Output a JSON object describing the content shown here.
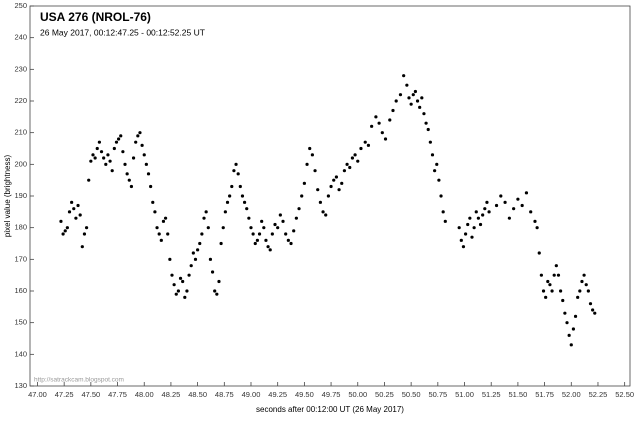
{
  "chart_data": {
    "type": "scatter",
    "title": "USA 276  (NROL-76)",
    "subtitle": "26 May 2017, 00:12:47.25 - 00:12:52.25 UT",
    "x_label": "seconds after 00:12:00 UT (26 May 2017)",
    "y_label": "pixel value (brightness)",
    "annotation": "http://satrackcam.blogspot.com",
    "color": "#000000",
    "xlim": [
      46.93,
      52.55
    ],
    "ylim": [
      130,
      250
    ],
    "xticks": [
      {
        "value": 47,
        "label": "47.00"
      },
      {
        "value": 47.25,
        "label": "47.25"
      },
      {
        "value": 47.5,
        "label": "47.50"
      },
      {
        "value": 47.75,
        "label": "47.75"
      },
      {
        "value": 48,
        "label": "48.00"
      },
      {
        "value": 48.25,
        "label": "48.25"
      },
      {
        "value": 48.5,
        "label": "48.50"
      },
      {
        "value": 48.75,
        "label": "48.75"
      },
      {
        "value": 49,
        "label": "49.00"
      },
      {
        "value": 49.25,
        "label": "49.25"
      },
      {
        "value": 49.5,
        "label": "49.50"
      },
      {
        "value": 49.75,
        "label": "49.75"
      },
      {
        "value": 50,
        "label": "50.00"
      },
      {
        "value": 50.25,
        "label": "50.25"
      },
      {
        "value": 50.5,
        "label": "50.50"
      },
      {
        "value": 50.75,
        "label": "50.75"
      },
      {
        "value": 51,
        "label": "51.00"
      },
      {
        "value": 51.25,
        "label": "51.25"
      },
      {
        "value": 51.5,
        "label": "51.50"
      },
      {
        "value": 51.75,
        "label": "51.75"
      },
      {
        "value": 52,
        "label": "52.00"
      },
      {
        "value": 52.25,
        "label": "52.25"
      },
      {
        "value": 52.5,
        "label": "52.50"
      }
    ],
    "yticks": [
      130,
      140,
      150,
      160,
      170,
      180,
      190,
      200,
      210,
      220,
      230,
      240,
      250
    ],
    "x": [
      47.22,
      47.24,
      47.26,
      47.28,
      47.3,
      47.32,
      47.34,
      47.36,
      47.38,
      47.4,
      47.42,
      47.44,
      47.46,
      47.48,
      47.5,
      47.52,
      47.54,
      47.56,
      47.58,
      47.6,
      47.62,
      47.64,
      47.66,
      47.68,
      47.7,
      47.72,
      47.74,
      47.76,
      47.78,
      47.8,
      47.82,
      47.84,
      47.86,
      47.88,
      47.9,
      47.92,
      47.94,
      47.96,
      47.98,
      48.0,
      48.02,
      48.04,
      48.06,
      48.08,
      48.1,
      48.12,
      48.14,
      48.16,
      48.18,
      48.2,
      48.22,
      48.24,
      48.26,
      48.28,
      48.3,
      48.32,
      48.34,
      48.36,
      48.38,
      48.4,
      48.42,
      48.44,
      48.46,
      48.48,
      48.5,
      48.52,
      48.54,
      48.56,
      48.58,
      48.6,
      48.62,
      48.64,
      48.66,
      48.68,
      48.7,
      48.72,
      48.74,
      48.76,
      48.78,
      48.8,
      48.82,
      48.84,
      48.86,
      48.88,
      48.9,
      48.92,
      48.94,
      48.96,
      48.98,
      49.0,
      49.02,
      49.04,
      49.06,
      49.08,
      49.1,
      49.12,
      49.14,
      49.16,
      49.18,
      49.2,
      49.225,
      49.25,
      49.275,
      49.3,
      49.325,
      49.35,
      49.375,
      49.4,
      49.425,
      49.45,
      49.475,
      49.5,
      49.525,
      49.55,
      49.575,
      49.6,
      49.625,
      49.65,
      49.675,
      49.7,
      49.725,
      49.75,
      49.775,
      49.8,
      49.825,
      49.85,
      49.875,
      49.9,
      49.925,
      49.95,
      49.975,
      50.0,
      50.03,
      50.07,
      50.1,
      50.13,
      50.17,
      50.2,
      50.23,
      50.26,
      50.3,
      50.33,
      50.36,
      50.4,
      50.43,
      50.46,
      50.48,
      50.5,
      50.52,
      50.54,
      50.56,
      50.58,
      50.6,
      50.62,
      50.64,
      50.66,
      50.68,
      50.7,
      50.72,
      50.74,
      50.76,
      50.78,
      50.8,
      50.82,
      50.95,
      50.97,
      50.99,
      51.01,
      51.03,
      51.05,
      51.07,
      51.09,
      51.11,
      51.13,
      51.15,
      51.17,
      51.19,
      51.21,
      51.23,
      51.3,
      51.34,
      51.38,
      51.42,
      51.46,
      51.5,
      51.54,
      51.58,
      51.62,
      51.66,
      51.68,
      51.7,
      51.72,
      51.74,
      51.76,
      51.78,
      51.8,
      51.82,
      51.84,
      51.86,
      51.88,
      51.9,
      51.92,
      51.94,
      51.96,
      51.98,
      52.0,
      52.02,
      52.04,
      52.06,
      52.08,
      52.1,
      52.12,
      52.14,
      52.16,
      52.18,
      52.2,
      52.22
    ],
    "values": [
      182,
      178,
      179,
      180,
      185,
      188,
      186,
      183,
      187,
      184,
      174,
      178,
      180,
      195,
      201,
      203,
      202,
      205,
      207,
      204,
      202,
      200,
      203,
      201,
      198,
      205,
      207,
      208,
      209,
      204,
      200,
      197,
      195,
      193,
      202,
      207,
      209,
      210,
      206,
      203,
      200,
      197,
      193,
      188,
      185,
      180,
      178,
      176,
      182,
      183,
      178,
      170,
      165,
      162,
      159,
      160,
      164,
      163,
      158,
      160,
      165,
      168,
      172,
      170,
      173,
      175,
      178,
      183,
      185,
      180,
      170,
      166,
      160,
      159,
      163,
      175,
      180,
      185,
      188,
      190,
      193,
      198,
      200,
      197,
      193,
      190,
      188,
      186,
      183,
      180,
      178,
      175,
      176,
      178,
      182,
      180,
      176,
      174,
      173,
      178,
      181,
      180,
      184,
      182,
      178,
      176,
      175,
      179,
      183,
      186,
      190,
      194,
      200,
      205,
      203,
      198,
      192,
      188,
      185,
      184,
      190,
      193,
      195,
      196,
      192,
      194,
      198,
      200,
      199,
      202,
      203,
      201,
      205,
      207,
      206,
      212,
      215,
      213,
      210,
      208,
      214,
      217,
      220,
      222,
      228,
      225,
      221,
      219,
      222,
      223,
      220,
      218,
      221,
      216,
      213,
      211,
      207,
      203,
      198,
      200,
      195,
      190,
      185,
      182,
      180,
      176,
      174,
      178,
      181,
      183,
      177,
      180,
      185,
      183,
      181,
      184,
      186,
      188,
      185,
      187,
      190,
      188,
      183,
      186,
      189,
      187,
      191,
      185,
      182,
      180,
      172,
      165,
      160,
      158,
      163,
      162,
      160,
      165,
      168,
      165,
      160,
      157,
      153,
      150,
      146,
      143,
      148,
      152,
      158,
      160,
      163,
      165,
      162,
      160,
      156,
      154,
      153
    ]
  }
}
